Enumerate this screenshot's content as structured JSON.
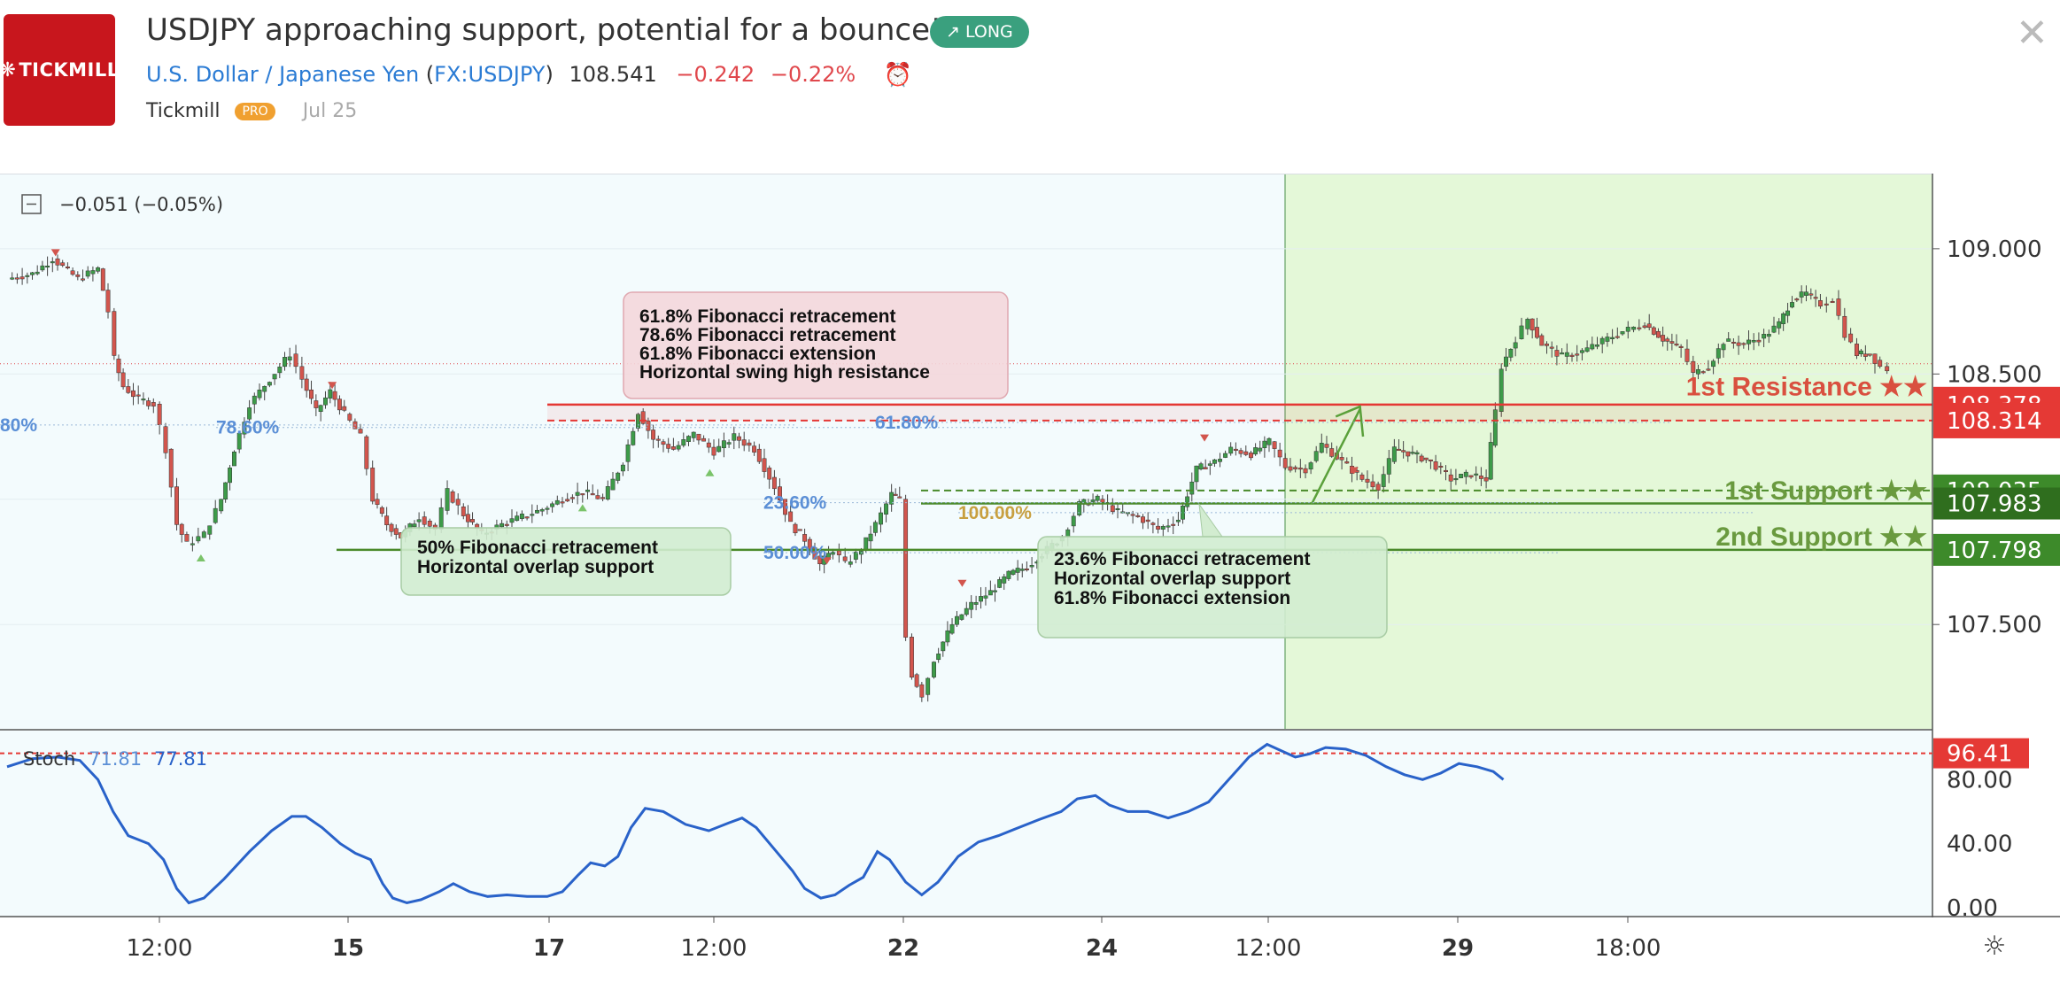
{
  "header": {
    "logo_text": "TICKMILL",
    "title": "USDJPY approaching support, potential for a bounce!",
    "badge": "LONG",
    "badge_icon": "arrow-up-right-icon",
    "symbol_name": "U.S. Dollar / Japanese Yen",
    "symbol_code": "FX:USDJPY",
    "last": "108.541",
    "change": "−0.242",
    "change_pct": "−0.22%",
    "author": "Tickmill",
    "author_badge": "PRO",
    "date": "Jul 25",
    "close_icon": "close-icon",
    "alarm_icon": "alarm-clock-icon"
  },
  "colors": {
    "background": "#f3fbfd",
    "panel_green": "#e4f8d8",
    "up_candle": "#3d9b49",
    "down_candle": "#d2554d",
    "resistance": "#e53935",
    "support": "#4a8a2a",
    "stoch": "#2962c9",
    "fib_label": "#5b8fd6"
  },
  "chart_data": {
    "type": "candlestick",
    "legend_value": "−0.051 (−0.05%)",
    "x_ticks": [
      "12:00",
      "15",
      "17",
      "12:00",
      "22",
      "24",
      "12:00",
      "29",
      "18:00"
    ],
    "y_ticks": [
      "109.000",
      "108.500",
      "107.500"
    ],
    "ylim": [
      107.08,
      109.3
    ],
    "price_series": [
      [
        0,
        108.88
      ],
      [
        25,
        108.9
      ],
      [
        45,
        108.96
      ],
      [
        70,
        108.88
      ],
      [
        90,
        108.92
      ],
      [
        100,
        108.75
      ],
      [
        106,
        108.56
      ],
      [
        115,
        108.45
      ],
      [
        130,
        108.4
      ],
      [
        145,
        108.38
      ],
      [
        157,
        108.2
      ],
      [
        168,
        107.9
      ],
      [
        178,
        107.82
      ],
      [
        195,
        107.86
      ],
      [
        212,
        108.0
      ],
      [
        225,
        108.2
      ],
      [
        240,
        108.38
      ],
      [
        260,
        108.48
      ],
      [
        280,
        108.58
      ],
      [
        292,
        108.48
      ],
      [
        306,
        108.35
      ],
      [
        320,
        108.43
      ],
      [
        334,
        108.34
      ],
      [
        350,
        108.25
      ],
      [
        362,
        108.0
      ],
      [
        376,
        107.9
      ],
      [
        390,
        107.85
      ],
      [
        408,
        107.93
      ],
      [
        424,
        107.88
      ],
      [
        436,
        108.03
      ],
      [
        452,
        107.94
      ],
      [
        470,
        107.86
      ],
      [
        490,
        107.9
      ],
      [
        510,
        107.93
      ],
      [
        530,
        107.96
      ],
      [
        550,
        108.0
      ],
      [
        570,
        108.03
      ],
      [
        590,
        108.0
      ],
      [
        610,
        108.15
      ],
      [
        625,
        108.35
      ],
      [
        640,
        108.24
      ],
      [
        660,
        108.2
      ],
      [
        680,
        108.26
      ],
      [
        700,
        108.19
      ],
      [
        720,
        108.25
      ],
      [
        740,
        108.2
      ],
      [
        760,
        108.05
      ],
      [
        776,
        107.9
      ],
      [
        790,
        107.84
      ],
      [
        805,
        107.74
      ],
      [
        818,
        107.8
      ],
      [
        830,
        107.74
      ],
      [
        846,
        107.8
      ],
      [
        860,
        107.9
      ],
      [
        876,
        108.02
      ],
      [
        884,
        108.0
      ],
      [
        890,
        107.45
      ],
      [
        896,
        107.3
      ],
      [
        906,
        107.22
      ],
      [
        918,
        107.36
      ],
      [
        936,
        107.5
      ],
      [
        955,
        107.58
      ],
      [
        974,
        107.63
      ],
      [
        992,
        107.7
      ],
      [
        1010,
        107.73
      ],
      [
        1030,
        107.8
      ],
      [
        1045,
        107.85
      ],
      [
        1062,
        107.98
      ],
      [
        1080,
        108.0
      ],
      [
        1100,
        107.95
      ],
      [
        1120,
        107.93
      ],
      [
        1140,
        107.88
      ],
      [
        1160,
        107.92
      ],
      [
        1178,
        108.12
      ],
      [
        1196,
        108.15
      ],
      [
        1212,
        108.2
      ],
      [
        1232,
        108.18
      ],
      [
        1250,
        108.23
      ],
      [
        1266,
        108.13
      ],
      [
        1286,
        108.12
      ],
      [
        1302,
        108.22
      ],
      [
        1322,
        108.15
      ],
      [
        1342,
        108.08
      ],
      [
        1358,
        108.05
      ],
      [
        1374,
        108.2
      ],
      [
        1392,
        108.18
      ],
      [
        1410,
        108.15
      ],
      [
        1430,
        108.08
      ],
      [
        1450,
        108.1
      ],
      [
        1465,
        108.08
      ],
      [
        1474,
        108.35
      ],
      [
        1480,
        108.53
      ],
      [
        1494,
        108.64
      ],
      [
        1506,
        108.72
      ],
      [
        1520,
        108.62
      ],
      [
        1540,
        108.57
      ],
      [
        1560,
        108.59
      ],
      [
        1580,
        108.63
      ],
      [
        1600,
        108.67
      ],
      [
        1622,
        108.7
      ],
      [
        1640,
        108.64
      ],
      [
        1658,
        108.6
      ],
      [
        1670,
        108.5
      ],
      [
        1685,
        108.53
      ],
      [
        1700,
        108.63
      ],
      [
        1720,
        108.62
      ],
      [
        1740,
        108.65
      ],
      [
        1755,
        108.7
      ],
      [
        1768,
        108.8
      ],
      [
        1782,
        108.82
      ],
      [
        1796,
        108.78
      ],
      [
        1808,
        108.8
      ],
      [
        1820,
        108.66
      ],
      [
        1832,
        108.58
      ],
      [
        1845,
        108.58
      ],
      [
        1855,
        108.53
      ],
      [
        1862,
        108.52
      ]
    ],
    "fib_labels": [
      {
        "text": "80%",
        "x": 0,
        "price": 108.3
      },
      {
        "text": "78.60%",
        "x": 244,
        "price": 108.29
      },
      {
        "text": "61.80%",
        "x": 988,
        "price": 108.31
      },
      {
        "text": "23.60%",
        "x": 862,
        "price": 107.99
      },
      {
        "text": "100.00%",
        "x": 1082,
        "price": 107.95
      },
      {
        "text": "50.00%",
        "x": 862,
        "price": 107.79
      }
    ],
    "horizontal_lines": [
      {
        "name": "resistance-main",
        "price": 108.378,
        "x_start": 618,
        "style": "solid",
        "color": "#e53935"
      },
      {
        "name": "resistance-2",
        "price": 108.314,
        "x_start": 618,
        "style": "dashed",
        "color": "#e53935"
      },
      {
        "name": "support-1",
        "price": 108.035,
        "x_start": 1040,
        "style": "dashed",
        "color": "#4a8a2a"
      },
      {
        "name": "support-1b",
        "price": 107.983,
        "x_start": 1040,
        "style": "solid",
        "color": "#4a8a2a"
      },
      {
        "name": "support-2",
        "price": 107.798,
        "x_start": 380,
        "style": "solid",
        "color": "#4a8a2a"
      }
    ],
    "price_labels": [
      {
        "text": "108.378",
        "price": 108.378,
        "bg": "#e53935"
      },
      {
        "text": "108.314",
        "price": 108.314,
        "bg": "#e53935"
      },
      {
        "text": "108.035",
        "price": 108.035,
        "bg": "#3d8a2a"
      },
      {
        "text": "107.983",
        "price": 107.983,
        "bg": "#2f6e1e"
      },
      {
        "text": "107.798",
        "price": 107.798,
        "bg": "#3d8a2a"
      }
    ],
    "level_labels": [
      {
        "text": "1st Resistance ★★",
        "price": 108.45,
        "color": "#d9503f"
      },
      {
        "text": "1st Support ★★",
        "price": 108.035,
        "color": "#6a9a3f"
      },
      {
        "text": "2nd Support ★★",
        "price": 107.85,
        "color": "#6a9a3f"
      }
    ],
    "annotations": [
      {
        "name": "resistance-note",
        "lines": [
          "61.8%  Fibonacci retracement",
          " 78.6% Fibonacci retracement",
          "61.8% Fibonacci extension",
          "Horizontal swing high resistance"
        ],
        "box": "red"
      },
      {
        "name": "support-1-note",
        "lines": [
          "23.6% Fibonacci retracement",
          "Horizontal overlap support",
          "61.8% Fibonacci extension"
        ],
        "box": "green"
      },
      {
        "name": "support-2-note",
        "lines": [
          "50% Fibonacci retracement",
          "Horizontal overlap support"
        ],
        "box": "green"
      }
    ],
    "stoch": {
      "label": "Stoch",
      "k": "71.81",
      "d": "77.81",
      "level_label": "96.41",
      "level": 96.41,
      "y_ticks": [
        "80.00",
        "40.00",
        "0.00"
      ],
      "ylim": [
        -5,
        110
      ],
      "series": [
        [
          0,
          88
        ],
        [
          25,
          93
        ],
        [
          50,
          94
        ],
        [
          72,
          92
        ],
        [
          90,
          80
        ],
        [
          105,
          60
        ],
        [
          120,
          45
        ],
        [
          140,
          40
        ],
        [
          155,
          30
        ],
        [
          168,
          12
        ],
        [
          180,
          3
        ],
        [
          195,
          6
        ],
        [
          215,
          18
        ],
        [
          240,
          35
        ],
        [
          262,
          48
        ],
        [
          282,
          57
        ],
        [
          296,
          57
        ],
        [
          312,
          50
        ],
        [
          330,
          40
        ],
        [
          345,
          34
        ],
        [
          360,
          30
        ],
        [
          372,
          15
        ],
        [
          382,
          6
        ],
        [
          396,
          3
        ],
        [
          410,
          5
        ],
        [
          428,
          10
        ],
        [
          442,
          15
        ],
        [
          458,
          10
        ],
        [
          476,
          7
        ],
        [
          495,
          8
        ],
        [
          515,
          7
        ],
        [
          535,
          7
        ],
        [
          550,
          10
        ],
        [
          565,
          20
        ],
        [
          578,
          28
        ],
        [
          592,
          26
        ],
        [
          605,
          32
        ],
        [
          618,
          50
        ],
        [
          632,
          62
        ],
        [
          650,
          60
        ],
        [
          672,
          52
        ],
        [
          695,
          48
        ],
        [
          715,
          53
        ],
        [
          728,
          56
        ],
        [
          742,
          50
        ],
        [
          758,
          38
        ],
        [
          778,
          23
        ],
        [
          790,
          12
        ],
        [
          806,
          6
        ],
        [
          820,
          8
        ],
        [
          834,
          14
        ],
        [
          848,
          19
        ],
        [
          862,
          35
        ],
        [
          874,
          30
        ],
        [
          890,
          16
        ],
        [
          906,
          8
        ],
        [
          922,
          16
        ],
        [
          942,
          32
        ],
        [
          962,
          41
        ],
        [
          982,
          45
        ],
        [
          1002,
          50
        ],
        [
          1022,
          55
        ],
        [
          1044,
          60
        ],
        [
          1060,
          68
        ],
        [
          1078,
          70
        ],
        [
          1092,
          64
        ],
        [
          1110,
          60
        ],
        [
          1130,
          60
        ],
        [
          1150,
          56
        ],
        [
          1170,
          60
        ],
        [
          1190,
          66
        ],
        [
          1210,
          80
        ],
        [
          1230,
          94
        ],
        [
          1248,
          102
        ],
        [
          1262,
          98
        ],
        [
          1276,
          94
        ],
        [
          1290,
          96
        ],
        [
          1306,
          100
        ],
        [
          1326,
          99
        ],
        [
          1346,
          95
        ],
        [
          1366,
          88
        ],
        [
          1384,
          83
        ],
        [
          1402,
          80
        ],
        [
          1420,
          84
        ],
        [
          1438,
          90
        ],
        [
          1456,
          88
        ],
        [
          1472,
          85
        ],
        [
          1482,
          80
        ]
      ]
    }
  }
}
